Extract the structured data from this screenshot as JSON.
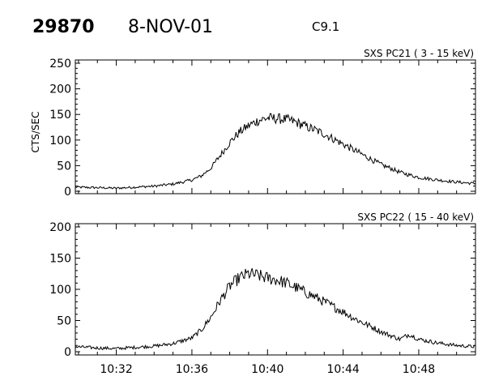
{
  "header": {
    "event_id": "29870",
    "date": "8-NOV-01",
    "flare_class": "C9.1"
  },
  "chart_data": [
    {
      "type": "line",
      "title": "SXS PC21  (  3 - 15 keV)",
      "ylabel": "CTS/SEC",
      "xlabel": "",
      "xlim": [
        "10:29:50",
        "10:51:00"
      ],
      "ylim": [
        0,
        250
      ],
      "yticks": [
        0,
        50,
        100,
        150,
        200,
        250
      ],
      "xticks": [
        "10:32",
        "10:36",
        "10:40",
        "10:44",
        "10:48"
      ],
      "show_x_tick_labels": false,
      "noise_amplitude": 12,
      "series": [
        {
          "x": [
            "10:29:50",
            "10:31:00",
            "10:32:00",
            "10:33:00",
            "10:34:00",
            "10:35:00",
            "10:36:00",
            "10:36:30",
            "10:37:00",
            "10:37:30",
            "10:38:00",
            "10:38:30",
            "10:39:00",
            "10:39:30",
            "10:40:00",
            "10:40:30",
            "10:41:00",
            "10:41:30",
            "10:42:00",
            "10:42:30",
            "10:43:00",
            "10:43:30",
            "10:44:00",
            "10:44:30",
            "10:45:00",
            "10:45:30",
            "10:46:00",
            "10:46:30",
            "10:47:00",
            "10:47:30",
            "10:48:00",
            "10:49:00",
            "10:50:00",
            "10:51:00"
          ],
          "y": [
            8,
            7,
            6,
            8,
            10,
            14,
            22,
            30,
            45,
            70,
            95,
            115,
            128,
            138,
            143,
            142,
            140,
            135,
            127,
            120,
            112,
            102,
            92,
            82,
            72,
            62,
            52,
            45,
            37,
            32,
            27,
            22,
            18,
            15
          ]
        }
      ]
    },
    {
      "type": "line",
      "title": "SXS PC22  ( 15 - 40 keV)",
      "ylabel": "",
      "xlabel": "",
      "xlim": [
        "10:29:50",
        "10:51:00"
      ],
      "ylim": [
        0,
        200
      ],
      "yticks": [
        0,
        50,
        100,
        150,
        200
      ],
      "xticks": [
        "10:32",
        "10:36",
        "10:40",
        "10:44",
        "10:48"
      ],
      "show_x_tick_labels": true,
      "noise_amplitude": 14,
      "series": [
        {
          "x": [
            "10:29:50",
            "10:31:00",
            "10:32:00",
            "10:33:00",
            "10:34:00",
            "10:35:00",
            "10:36:00",
            "10:36:30",
            "10:37:00",
            "10:37:30",
            "10:38:00",
            "10:38:30",
            "10:39:00",
            "10:39:30",
            "10:40:00",
            "10:40:30",
            "10:41:00",
            "10:41:30",
            "10:42:00",
            "10:42:30",
            "10:43:00",
            "10:43:30",
            "10:44:00",
            "10:44:30",
            "10:45:00",
            "10:45:30",
            "10:46:00",
            "10:46:30",
            "10:47:00",
            "10:47:30",
            "10:48:00",
            "10:49:00",
            "10:50:00",
            "10:51:00"
          ],
          "y": [
            8,
            6,
            5,
            7,
            9,
            13,
            22,
            35,
            55,
            82,
            105,
            118,
            125,
            122,
            118,
            115,
            110,
            103,
            95,
            88,
            80,
            72,
            64,
            55,
            47,
            40,
            32,
            26,
            20,
            28,
            20,
            14,
            10,
            8
          ]
        }
      ]
    }
  ]
}
